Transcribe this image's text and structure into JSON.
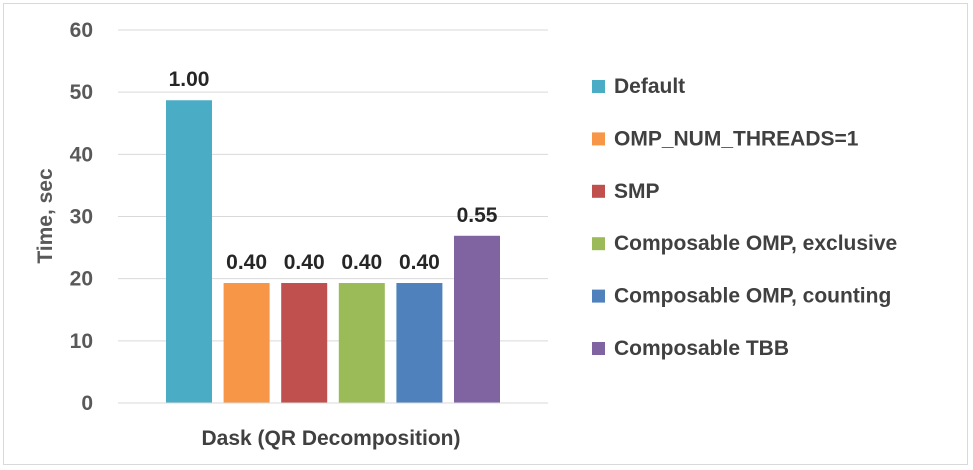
{
  "chart_data": {
    "type": "bar",
    "title": "",
    "xlabel": "Dask (QR Decomposition)",
    "ylabel": "Time, sec",
    "ylim": [
      0,
      60
    ],
    "yticks": [
      "0",
      "10",
      "20",
      "30",
      "40",
      "50",
      "60"
    ],
    "grid": true,
    "legend_position": "right",
    "series": [
      {
        "name": "Default",
        "value": 48.7,
        "label": "1.00",
        "color": "#4bacc6"
      },
      {
        "name": "OMP_NUM_THREADS=1",
        "value": 19.3,
        "label": "0.40",
        "color": "#f79646"
      },
      {
        "name": "SMP",
        "value": 19.3,
        "label": "0.40",
        "color": "#c0504d"
      },
      {
        "name": "Composable OMP, exclusive",
        "value": 19.3,
        "label": "0.40",
        "color": "#9bbb59"
      },
      {
        "name": "Composable OMP, counting",
        "value": 19.3,
        "label": "0.40",
        "color": "#4f81bd"
      },
      {
        "name": "Composable TBB",
        "value": 26.9,
        "label": "0.55",
        "color": "#8064a2"
      }
    ]
  }
}
